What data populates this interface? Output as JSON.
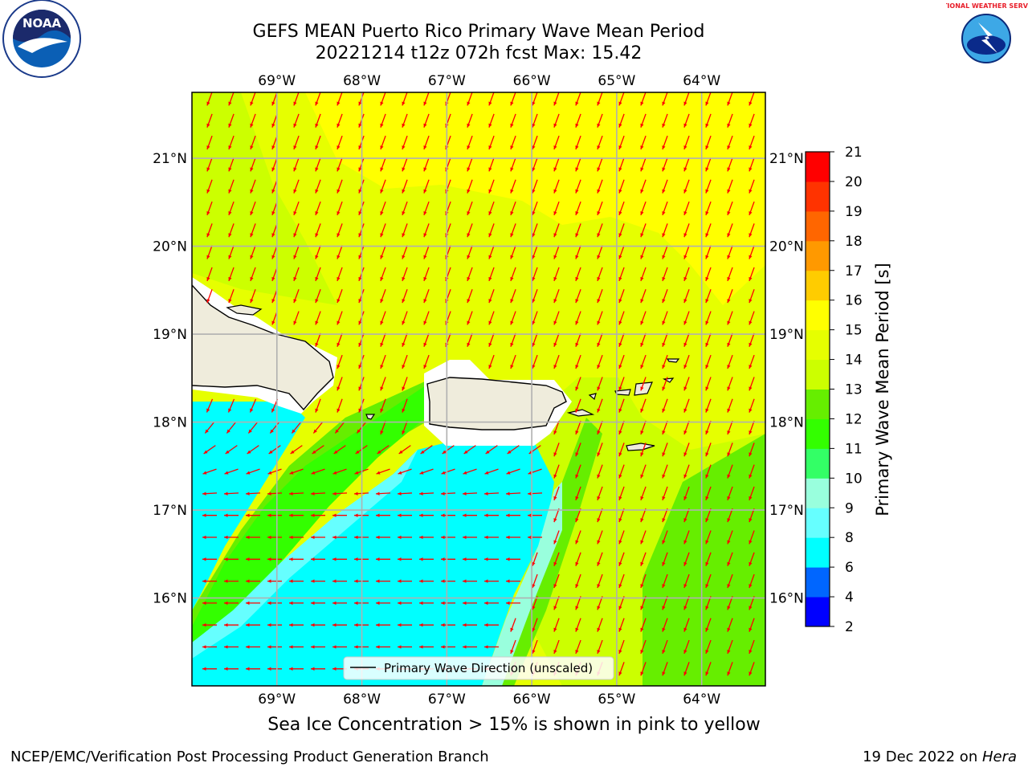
{
  "title_line1": "GEFS MEAN Puerto Rico Primary Wave Mean Period",
  "title_line2": "20221214 t12z 072h fcst   Max: 15.42",
  "caption": "Sea Ice Concentration > 15% is shown in pink to yellow",
  "footer_left": "NCEP/EMC/Verification Post Processing Product Generation Branch",
  "footer_right_date": "19 Dec 2022 on ",
  "footer_right_host": "Hera",
  "logos": {
    "left": "NOAA",
    "right": "NATIONAL WEATHER SERVICE"
  },
  "legend_label": "Primary Wave Direction (unscaled)",
  "colorbar": {
    "label": "Primary Wave Mean Period [s]",
    "ticks": [
      "2",
      "4",
      "6",
      "8",
      "9",
      "10",
      "11",
      "12",
      "13",
      "14",
      "15",
      "16",
      "17",
      "18",
      "19",
      "20",
      "21"
    ],
    "colors": [
      "#0000ff",
      "#0066ff",
      "#00ffff",
      "#66ffff",
      "#99ffdd",
      "#33ff66",
      "#33ff00",
      "#66ee00",
      "#ccff00",
      "#e6ff00",
      "#ffff00",
      "#ffcc00",
      "#ff9900",
      "#ff6600",
      "#ff3300",
      "#ff0000"
    ]
  },
  "map": {
    "lon_labels": [
      "69°W",
      "68°W",
      "67°W",
      "66°W",
      "65°W",
      "64°W"
    ],
    "lat_labels": [
      "21°N",
      "20°N",
      "19°N",
      "18°N",
      "17°N",
      "16°N"
    ],
    "lon_range": [
      -70.0,
      -63.25
    ],
    "lat_range": [
      15.0,
      21.75
    ],
    "arrow_color": "#ff0000",
    "land_color": "#efecdc"
  }
}
